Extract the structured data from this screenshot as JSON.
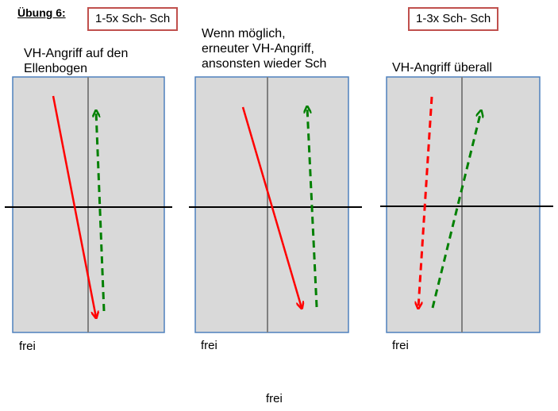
{
  "title": "Übung 6:",
  "panels": [
    {
      "badge": "1-5x Sch- Sch",
      "caption_lines": [
        "VH-Angriff auf den",
        "Ellenbogen"
      ],
      "free_label": "frei"
    },
    {
      "badge": "",
      "caption_lines": [
        "Wenn möglich,",
        "erneuter VH-Angriff,",
        "ansonsten wieder Sch"
      ],
      "free_label": "frei"
    },
    {
      "badge": "1-3x Sch- Sch",
      "caption_lines": [
        "VH-Angriff überall"
      ],
      "free_label": "frei"
    }
  ],
  "bottom_label": "frei",
  "colors": {
    "table_fill": "#d9d9d9",
    "table_border": "#4f81bd",
    "center_line": "#808080",
    "net": "#000000",
    "solid_arrow": "#ff0000",
    "dashed_red_arrow": "#ff0000",
    "dashed_green_arrow": "#008000",
    "badge_border": "#c0504d"
  }
}
